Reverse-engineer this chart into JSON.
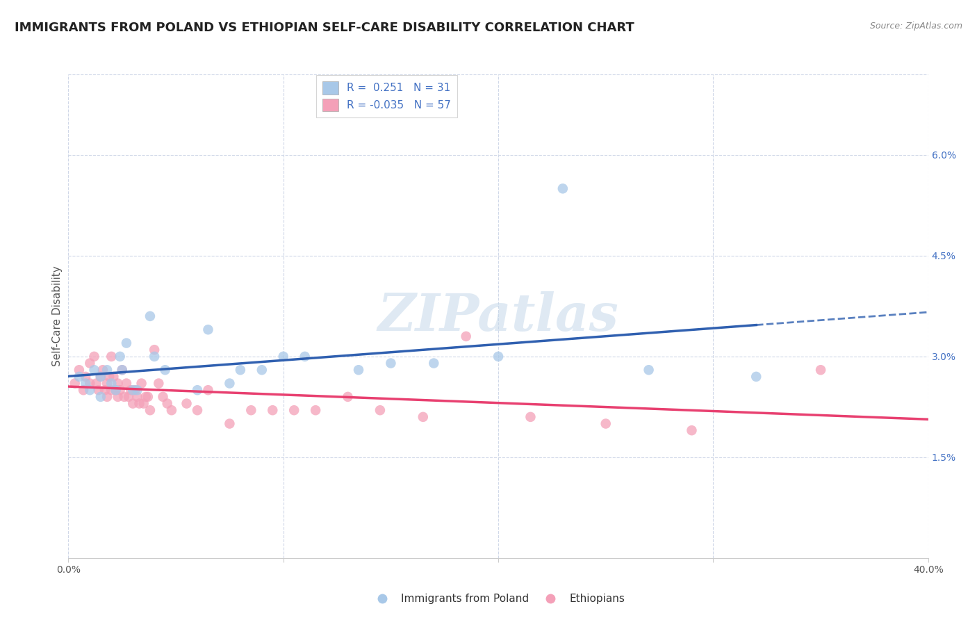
{
  "title": "IMMIGRANTS FROM POLAND VS ETHIOPIAN SELF-CARE DISABILITY CORRELATION CHART",
  "source": "Source: ZipAtlas.com",
  "ylabel": "Self-Care Disability",
  "watermark": "ZIPatlas",
  "xlim": [
    0.0,
    0.4
  ],
  "ylim": [
    0.0,
    0.072
  ],
  "ytick_vals": [
    0.015,
    0.03,
    0.045,
    0.06
  ],
  "ytick_labels": [
    "1.5%",
    "3.0%",
    "4.5%",
    "6.0%"
  ],
  "r_blue": 0.251,
  "n_blue": 31,
  "r_pink": -0.035,
  "n_pink": 57,
  "blue_color": "#a8c8e8",
  "pink_color": "#f4a0b8",
  "blue_line_color": "#3060b0",
  "pink_line_color": "#e84070",
  "legend_label_blue": "Immigrants from Poland",
  "legend_label_pink": "Ethiopians",
  "blue_scatter_x": [
    0.005,
    0.008,
    0.01,
    0.012,
    0.015,
    0.015,
    0.018,
    0.02,
    0.022,
    0.024,
    0.025,
    0.027,
    0.03,
    0.032,
    0.038,
    0.04,
    0.045,
    0.06,
    0.065,
    0.075,
    0.08,
    0.09,
    0.1,
    0.11,
    0.135,
    0.15,
    0.17,
    0.2,
    0.23,
    0.27,
    0.32
  ],
  "blue_scatter_y": [
    0.027,
    0.026,
    0.025,
    0.028,
    0.027,
    0.024,
    0.028,
    0.026,
    0.025,
    0.03,
    0.028,
    0.032,
    0.025,
    0.025,
    0.036,
    0.03,
    0.028,
    0.025,
    0.034,
    0.026,
    0.028,
    0.028,
    0.03,
    0.03,
    0.028,
    0.029,
    0.029,
    0.03,
    0.055,
    0.028,
    0.027
  ],
  "pink_scatter_x": [
    0.003,
    0.005,
    0.007,
    0.008,
    0.01,
    0.01,
    0.012,
    0.013,
    0.014,
    0.015,
    0.016,
    0.017,
    0.018,
    0.018,
    0.019,
    0.02,
    0.02,
    0.021,
    0.022,
    0.023,
    0.023,
    0.024,
    0.025,
    0.026,
    0.027,
    0.028,
    0.029,
    0.03,
    0.031,
    0.032,
    0.033,
    0.034,
    0.035,
    0.036,
    0.037,
    0.038,
    0.04,
    0.042,
    0.044,
    0.046,
    0.048,
    0.055,
    0.06,
    0.065,
    0.075,
    0.085,
    0.095,
    0.105,
    0.115,
    0.13,
    0.145,
    0.165,
    0.185,
    0.215,
    0.25,
    0.29,
    0.35
  ],
  "pink_scatter_y": [
    0.026,
    0.028,
    0.025,
    0.027,
    0.026,
    0.029,
    0.03,
    0.026,
    0.025,
    0.027,
    0.028,
    0.025,
    0.026,
    0.024,
    0.027,
    0.03,
    0.025,
    0.027,
    0.025,
    0.026,
    0.024,
    0.025,
    0.028,
    0.024,
    0.026,
    0.024,
    0.025,
    0.023,
    0.025,
    0.024,
    0.023,
    0.026,
    0.023,
    0.024,
    0.024,
    0.022,
    0.031,
    0.026,
    0.024,
    0.023,
    0.022,
    0.023,
    0.022,
    0.025,
    0.02,
    0.022,
    0.022,
    0.022,
    0.022,
    0.024,
    0.022,
    0.021,
    0.033,
    0.021,
    0.02,
    0.019,
    0.028
  ],
  "grid_color": "#d0d8e8",
  "background_color": "#ffffff",
  "title_fontsize": 13,
  "axis_label_fontsize": 11,
  "tick_fontsize": 10,
  "legend_fontsize": 11
}
